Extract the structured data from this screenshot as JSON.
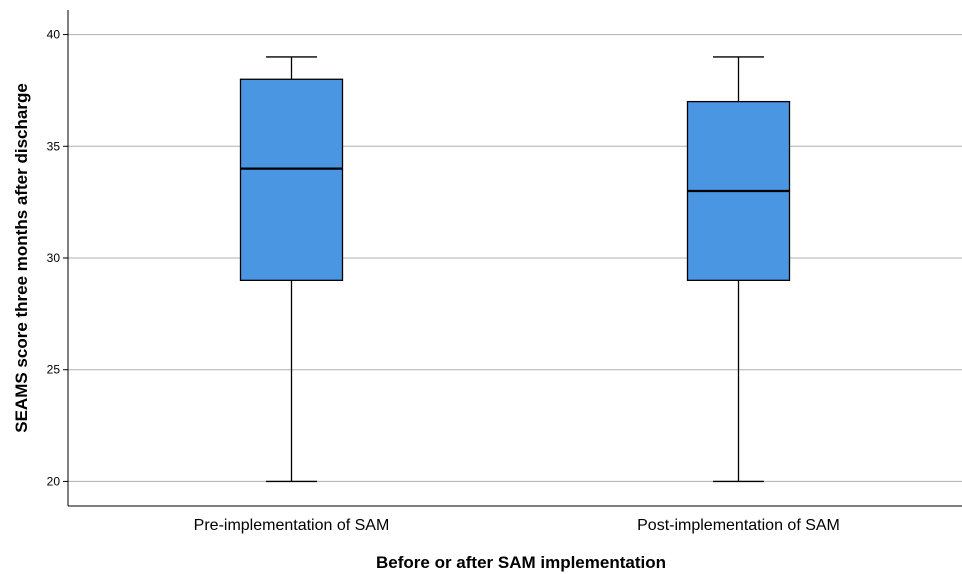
{
  "chart_data": {
    "type": "box",
    "title": "",
    "xlabel": "Before or after SAM implementation",
    "ylabel": "SEAMS score three months after discharge",
    "ylim": [
      18.9,
      41.1
    ],
    "yticks": [
      "20",
      "25",
      "30",
      "35",
      "40"
    ],
    "grid": true,
    "categories": [
      "Pre-implementation of SAM",
      "Post-implementation of SAM"
    ],
    "boxes": [
      {
        "category": "Pre-implementation of SAM",
        "min": 20,
        "q1": 29,
        "median": 34,
        "q3": 38,
        "max": 39
      },
      {
        "category": "Post-implementation of SAM",
        "min": 20,
        "q1": 29,
        "median": 33,
        "q3": 37,
        "max": 39
      }
    ],
    "colors": {
      "box_fill": "#4a96e2",
      "box_stroke": "#000000",
      "grid": "#b0b0b0"
    }
  }
}
